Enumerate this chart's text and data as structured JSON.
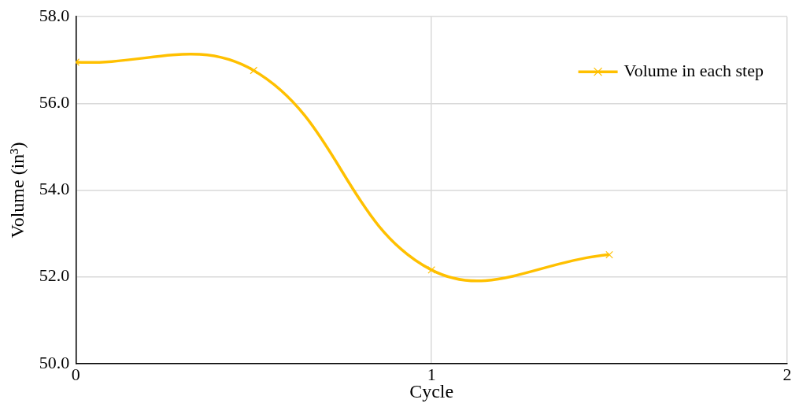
{
  "chart_data": {
    "type": "line",
    "xlabel": "Cycle",
    "ylabel": "Volume (in³)",
    "x": [
      0,
      0.5,
      1,
      1.5
    ],
    "series": [
      {
        "name": "Volume in each step",
        "color": "#ffc000",
        "values": [
          56.95,
          56.76,
          52.16,
          52.51
        ]
      }
    ],
    "xlim": [
      0,
      2
    ],
    "xticks": [
      0,
      1,
      2
    ],
    "ylim": [
      50,
      58
    ],
    "yticks": [
      {
        "value": 50,
        "label": "50.0"
      },
      {
        "value": 52,
        "label": "52.0"
      },
      {
        "value": 54,
        "label": "54.0"
      },
      {
        "value": 56,
        "label": "56.0"
      },
      {
        "value": 58,
        "label": "58.0"
      }
    ],
    "grid": true,
    "legend": "top right",
    "marker": "cross",
    "line_style": "solid"
  }
}
